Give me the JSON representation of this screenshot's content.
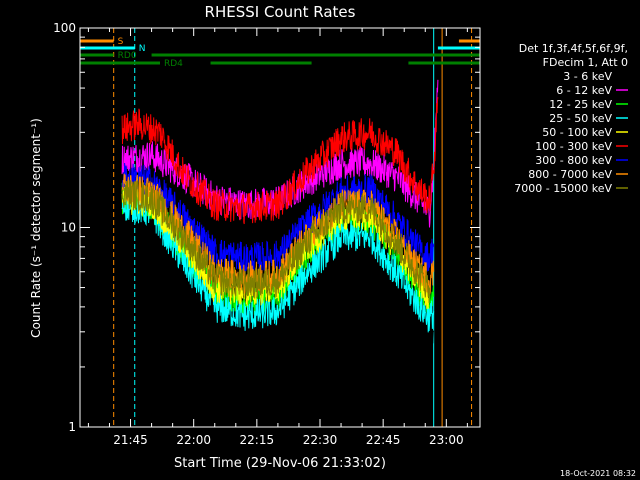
{
  "chart_data": {
    "type": "line",
    "title": "RHESSI Count Rates",
    "xlabel": "Start Time (29-Nov-06 21:33:02)",
    "ylabel": "Count Rate (s⁻¹ detector segment⁻¹)",
    "yscale": "log",
    "ylim": [
      1,
      100
    ],
    "xlim": [
      "21:33",
      "23:08"
    ],
    "x_ticks": [
      "21:45",
      "22:00",
      "22:15",
      "22:30",
      "22:45",
      "23:00"
    ],
    "y_ticks": [
      "1",
      "10",
      "100"
    ],
    "footer_date": "18-Oct-2021 08:32",
    "legend": {
      "placement": "right",
      "header": [
        "Det 1f,3f,4f,5f,6f,9f,",
        "FDecim 1, Att 0"
      ]
    },
    "flags": [
      {
        "label": "S",
        "color": "#ff8c00",
        "level": 1,
        "segments": [
          [
            "21:33",
            "21:41"
          ],
          [
            "23:03",
            "23:08"
          ]
        ]
      },
      {
        "label": "N",
        "color": "#00ffff",
        "level": 2,
        "segments": [
          [
            "21:33",
            "21:46"
          ],
          [
            "22:58",
            "23:08"
          ]
        ]
      },
      {
        "label": "RD0",
        "color": "#008000",
        "level": 3,
        "segments": [
          [
            "21:33",
            "21:41"
          ],
          [
            "21:50",
            "23:08"
          ]
        ]
      },
      {
        "label": "RD4",
        "color": "#008000",
        "level": 4,
        "segments": [
          [
            "21:33",
            "21:52"
          ],
          [
            "22:04",
            "22:28"
          ],
          [
            "22:51",
            "23:08"
          ]
        ]
      }
    ],
    "vlines": [
      {
        "x": "21:33",
        "color": "#00ffff",
        "style": "solid"
      },
      {
        "x": "21:41",
        "color": "#ff8c00",
        "style": "dashed"
      },
      {
        "x": "21:46",
        "color": "#00ffff",
        "style": "dashed"
      },
      {
        "x": "22:57",
        "color": "#00ffff",
        "style": "solid"
      },
      {
        "x": "22:59",
        "color": "#ff8c00",
        "style": "solid"
      },
      {
        "x": "23:06",
        "color": "#ff8c00",
        "style": "dashed"
      }
    ],
    "series": [
      {
        "name": "3 - 6 keV",
        "color": "#000000",
        "x": [
          "21:43",
          "21:50",
          "21:58",
          "22:05",
          "22:12",
          "22:20",
          "22:27",
          "22:35",
          "22:42",
          "22:48",
          "22:53",
          "22:56",
          "22:57"
        ],
        "y": [
          15,
          14,
          8.5,
          4.5,
          4.0,
          4.2,
          8.0,
          12,
          11.5,
          7.5,
          4.5,
          3.2,
          3.0
        ]
      },
      {
        "name": "6 - 12 keV",
        "color": "#ff00ff",
        "x": [
          "21:43",
          "21:50",
          "21:58",
          "22:05",
          "22:12",
          "22:20",
          "22:27",
          "22:35",
          "22:42",
          "22:48",
          "22:53",
          "22:56",
          "22:57",
          "22:58"
        ],
        "y": [
          22,
          23,
          18,
          14,
          13,
          13.5,
          17,
          21,
          21,
          18,
          14,
          12,
          20,
          55
        ]
      },
      {
        "name": "12 - 25 keV",
        "color": "#00ff00",
        "x": [
          "21:43",
          "21:50",
          "21:58",
          "22:05",
          "22:12",
          "22:20",
          "22:27",
          "22:35",
          "22:42",
          "22:48",
          "22:53",
          "22:56",
          "22:57"
        ],
        "y": [
          14,
          13,
          7.5,
          4.8,
          4.3,
          4.5,
          7.5,
          11,
          11,
          7.5,
          5.0,
          4.0,
          4.5
        ]
      },
      {
        "name": "25 - 50 keV",
        "color": "#00ffff",
        "x": [
          "21:43",
          "21:50",
          "21:58",
          "22:05",
          "22:12",
          "22:20",
          "22:27",
          "22:35",
          "22:42",
          "22:48",
          "22:53",
          "22:56",
          "22:57"
        ],
        "y": [
          13,
          12,
          6.5,
          4.0,
          3.6,
          3.8,
          6.0,
          9.0,
          9.0,
          6.0,
          4.2,
          3.5,
          3.8
        ]
      },
      {
        "name": "50 - 100 keV",
        "color": "#ffff00",
        "x": [
          "21:43",
          "21:50",
          "21:58",
          "22:05",
          "22:12",
          "22:20",
          "22:27",
          "22:35",
          "22:42",
          "22:48",
          "22:53",
          "22:56"
        ],
        "y": [
          14,
          13.5,
          8.0,
          5.0,
          4.8,
          5.0,
          8.0,
          11.5,
          11.5,
          8.0,
          5.5,
          4.5
        ]
      },
      {
        "name": "100 - 300 keV",
        "color": "#ff0000",
        "x": [
          "21:43",
          "21:47",
          "21:52",
          "21:58",
          "22:05",
          "22:12",
          "22:20",
          "22:27",
          "22:35",
          "22:42",
          "22:48",
          "22:53",
          "22:56",
          "22:57",
          "22:58"
        ],
        "y": [
          31,
          33,
          30,
          18,
          13,
          12.5,
          13,
          19,
          28,
          30,
          24,
          16,
          13.5,
          20,
          45
        ]
      },
      {
        "name": "300 - 800 keV",
        "color": "#0000ff",
        "x": [
          "21:43",
          "21:50",
          "21:58",
          "22:05",
          "22:12",
          "22:20",
          "22:27",
          "22:35",
          "22:42",
          "22:48",
          "22:53",
          "22:56",
          "22:57"
        ],
        "y": [
          18,
          17,
          11,
          7.5,
          7.0,
          7.2,
          10.5,
          15,
          15.5,
          11,
          8.0,
          7.0,
          8.0
        ]
      },
      {
        "name": "800 - 7000 keV",
        "color": "#ff8c00",
        "x": [
          "21:43",
          "21:50",
          "21:58",
          "22:05",
          "22:12",
          "22:20",
          "22:27",
          "22:35",
          "22:42",
          "22:48",
          "22:53",
          "22:56",
          "22:57"
        ],
        "y": [
          16,
          15,
          9.5,
          6.0,
          5.6,
          5.8,
          9.0,
          13,
          13,
          9.0,
          6.3,
          5.5,
          6.0
        ]
      },
      {
        "name": "7000 - 15000 keV",
        "color": "#808000",
        "x": [
          "21:43",
          "21:50",
          "21:58",
          "22:05",
          "22:12",
          "22:20",
          "22:27",
          "22:35",
          "22:42",
          "22:48",
          "22:53",
          "22:56"
        ],
        "y": [
          15,
          14,
          8.8,
          5.5,
          5.2,
          5.4,
          8.5,
          12.5,
          12.5,
          8.5,
          6.0,
          5.0
        ]
      }
    ]
  }
}
